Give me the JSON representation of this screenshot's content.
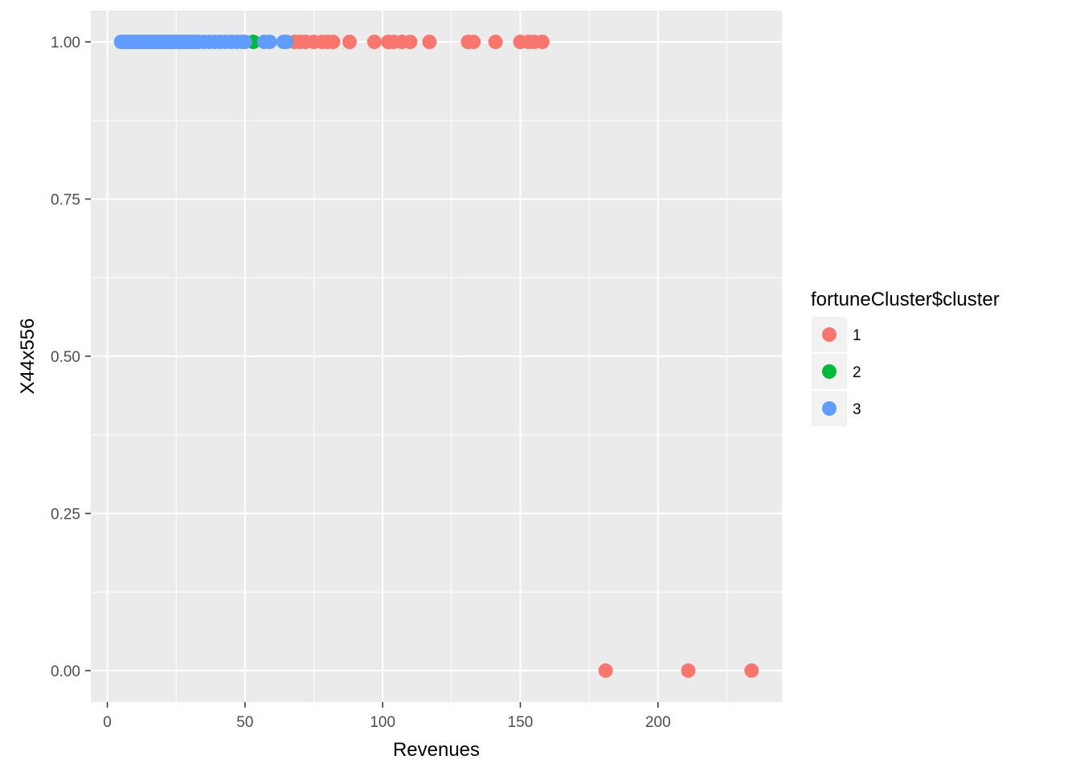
{
  "chart_data": {
    "type": "scatter",
    "title": "",
    "xlabel": "Revenues",
    "ylabel": "X44x556",
    "xlim": [
      -6,
      245
    ],
    "ylim": [
      -0.05,
      1.05
    ],
    "x_ticks": [
      0,
      50,
      100,
      150,
      200
    ],
    "x_tick_labels": [
      "0",
      "50",
      "100",
      "150",
      "200"
    ],
    "x_minor_ticks": [
      25,
      75,
      125,
      175,
      225
    ],
    "y_ticks": [
      0,
      0.25,
      0.5,
      0.75,
      1
    ],
    "y_tick_labels": [
      "0.00",
      "0.25",
      "0.50",
      "0.75",
      "1.00"
    ],
    "y_minor_ticks": [
      0.125,
      0.375,
      0.625,
      0.875
    ],
    "grid": true,
    "panel_background": "#ebebeb",
    "legend": {
      "title": "fortuneCluster$cluster",
      "placement": "right",
      "entries": [
        "1",
        "2",
        "3"
      ]
    },
    "series": [
      {
        "name": "1",
        "color": "#f8766d",
        "points": [
          {
            "x": 68,
            "y": 1
          },
          {
            "x": 70,
            "y": 1
          },
          {
            "x": 72,
            "y": 1
          },
          {
            "x": 75,
            "y": 1
          },
          {
            "x": 78,
            "y": 1
          },
          {
            "x": 80,
            "y": 1
          },
          {
            "x": 82,
            "y": 1
          },
          {
            "x": 88,
            "y": 1
          },
          {
            "x": 97,
            "y": 1
          },
          {
            "x": 102,
            "y": 1
          },
          {
            "x": 104,
            "y": 1
          },
          {
            "x": 107,
            "y": 1
          },
          {
            "x": 110,
            "y": 1
          },
          {
            "x": 117,
            "y": 1
          },
          {
            "x": 131,
            "y": 1
          },
          {
            "x": 133,
            "y": 1
          },
          {
            "x": 141,
            "y": 1
          },
          {
            "x": 150,
            "y": 1
          },
          {
            "x": 153,
            "y": 1
          },
          {
            "x": 155,
            "y": 1
          },
          {
            "x": 158,
            "y": 1
          },
          {
            "x": 181,
            "y": 0
          },
          {
            "x": 211,
            "y": 0
          },
          {
            "x": 234,
            "y": 0
          }
        ]
      },
      {
        "name": "2",
        "color": "#00ba38",
        "points": [
          {
            "x": 53,
            "y": 1
          }
        ]
      },
      {
        "name": "3",
        "color": "#619cff",
        "points": [
          {
            "x": 5,
            "y": 1
          },
          {
            "x": 6,
            "y": 1
          },
          {
            "x": 7,
            "y": 1
          },
          {
            "x": 8,
            "y": 1
          },
          {
            "x": 9,
            "y": 1
          },
          {
            "x": 10,
            "y": 1
          },
          {
            "x": 11,
            "y": 1
          },
          {
            "x": 12,
            "y": 1
          },
          {
            "x": 13,
            "y": 1
          },
          {
            "x": 14,
            "y": 1
          },
          {
            "x": 15,
            "y": 1
          },
          {
            "x": 16,
            "y": 1
          },
          {
            "x": 17,
            "y": 1
          },
          {
            "x": 18,
            "y": 1
          },
          {
            "x": 19,
            "y": 1
          },
          {
            "x": 20,
            "y": 1
          },
          {
            "x": 21,
            "y": 1
          },
          {
            "x": 22,
            "y": 1
          },
          {
            "x": 23,
            "y": 1
          },
          {
            "x": 24,
            "y": 1
          },
          {
            "x": 25,
            "y": 1
          },
          {
            "x": 26,
            "y": 1
          },
          {
            "x": 27,
            "y": 1
          },
          {
            "x": 28,
            "y": 1
          },
          {
            "x": 29,
            "y": 1
          },
          {
            "x": 30,
            "y": 1
          },
          {
            "x": 31,
            "y": 1
          },
          {
            "x": 32,
            "y": 1
          },
          {
            "x": 33,
            "y": 1
          },
          {
            "x": 35,
            "y": 1
          },
          {
            "x": 37,
            "y": 1
          },
          {
            "x": 39,
            "y": 1
          },
          {
            "x": 41,
            "y": 1
          },
          {
            "x": 43,
            "y": 1
          },
          {
            "x": 45,
            "y": 1
          },
          {
            "x": 47,
            "y": 1
          },
          {
            "x": 49,
            "y": 1
          },
          {
            "x": 50,
            "y": 1
          },
          {
            "x": 57,
            "y": 1
          },
          {
            "x": 59,
            "y": 1
          },
          {
            "x": 64,
            "y": 1
          },
          {
            "x": 65,
            "y": 1
          }
        ]
      }
    ]
  }
}
